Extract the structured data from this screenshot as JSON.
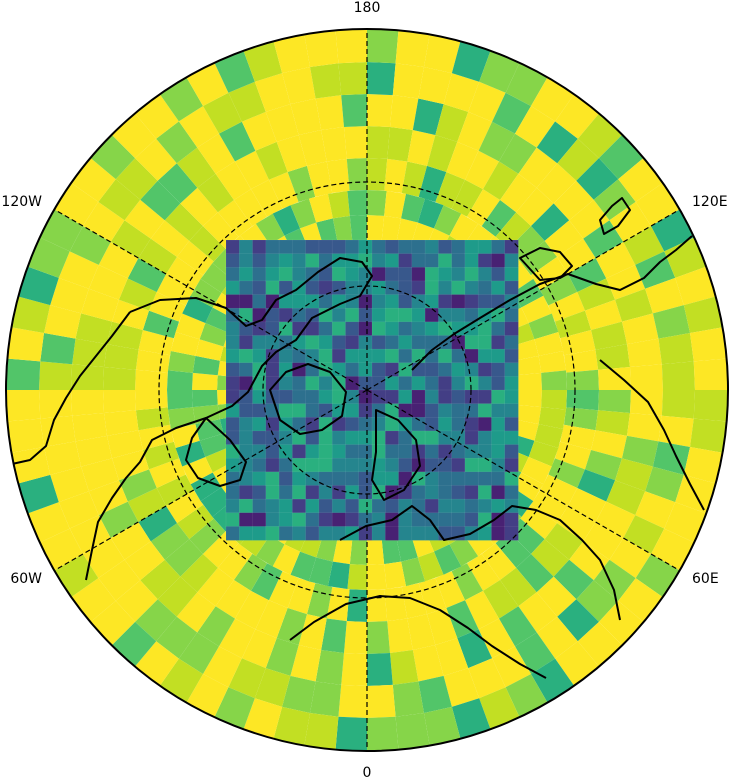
{
  "map": {
    "projection": "north-polar-stereographic",
    "colormap": "viridis",
    "palette": [
      "#fde725",
      "#c2df23",
      "#86d549",
      "#52c569",
      "#2ab07f",
      "#1e9b8a",
      "#25858e",
      "#2d708e",
      "#38588c",
      "#433e85",
      "#482173"
    ],
    "boundary_color": "#000000",
    "coastline_color": "#000000",
    "gridline_style": "dashed",
    "lon_labels": {
      "top": "180",
      "upper_left": "120W",
      "upper_right": "120E",
      "lower_left": "60W",
      "lower_right": "60E",
      "bottom": "0"
    }
  }
}
